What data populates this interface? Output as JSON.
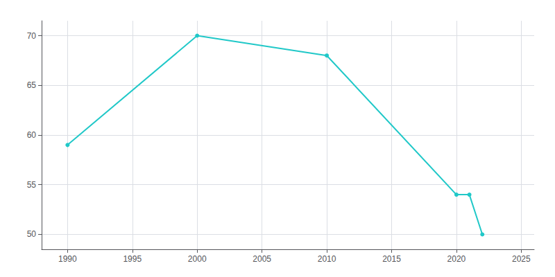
{
  "chart_data": {
    "type": "line",
    "x": [
      1990,
      2000,
      2010,
      2020,
      2021,
      2022
    ],
    "values": [
      59,
      70,
      68,
      54,
      54,
      50
    ],
    "color": "#20C8C8",
    "marker": "circle",
    "xlim": [
      1988,
      2026
    ],
    "xticks": [
      1990,
      1995,
      2000,
      2005,
      2010,
      2015,
      2020,
      2025
    ],
    "ylim": [
      48.5,
      71.5
    ],
    "yticks": [
      50,
      55,
      60,
      65,
      70
    ],
    "grid": true
  }
}
